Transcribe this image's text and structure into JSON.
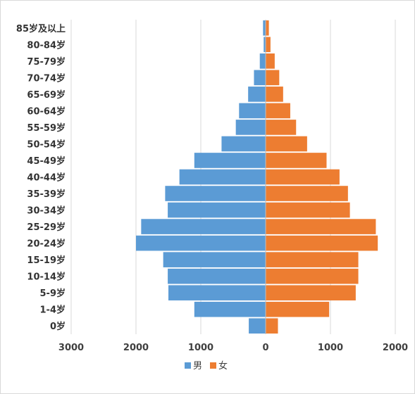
{
  "chart_data": {
    "type": "bar",
    "orientation": "horizontal",
    "layout": "population-pyramid",
    "title": "",
    "xlabel": "",
    "ylabel": "",
    "categories": [
      "0岁",
      "1-4岁",
      "5-9岁",
      "10-14岁",
      "15-19岁",
      "20-24岁",
      "25-29岁",
      "30-34岁",
      "35-39岁",
      "40-44岁",
      "45-49岁",
      "50-54岁",
      "55-59岁",
      "60-64岁",
      "65-69岁",
      "70-74岁",
      "75-79岁",
      "80-84岁",
      "85岁及以上"
    ],
    "series": [
      {
        "name": "男",
        "color": "#5b9bd5",
        "side": "left",
        "values": [
          260,
          1100,
          1500,
          1510,
          1580,
          2000,
          1920,
          1510,
          1550,
          1330,
          1100,
          680,
          460,
          410,
          270,
          180,
          90,
          30,
          40
        ]
      },
      {
        "name": "女",
        "color": "#ed7d31",
        "side": "right",
        "values": [
          190,
          980,
          1390,
          1430,
          1430,
          1730,
          1700,
          1300,
          1270,
          1140,
          940,
          640,
          470,
          380,
          270,
          210,
          140,
          75,
          50
        ]
      }
    ],
    "x_ticks": [
      "3000",
      "2000",
      "1000",
      "0",
      "1000",
      "2000"
    ],
    "xlim": [
      -3000,
      2000
    ],
    "grid": "vertical",
    "legend": "bottom"
  }
}
